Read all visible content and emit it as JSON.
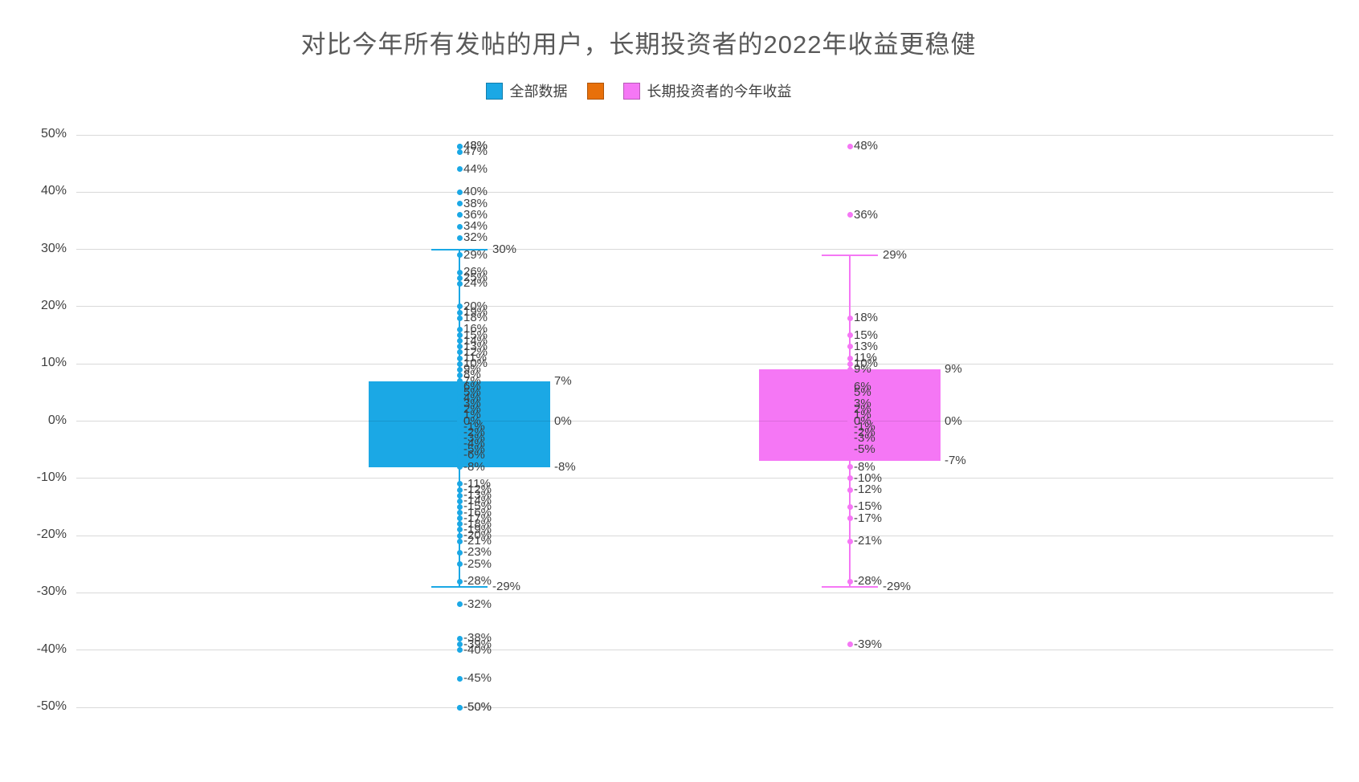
{
  "chart_data": {
    "type": "boxplot",
    "title": "对比今年所有发帖的用户，长期投资者的2022年收益更稳健",
    "ylim": [
      -50,
      50
    ],
    "ytick_step": 10,
    "value_suffix": "%",
    "grid": true,
    "legend_position": "top",
    "legend": [
      {
        "label": "全部数据",
        "color": "#1BA8E5"
      },
      {
        "label": "",
        "color": "#E8700A"
      },
      {
        "label": "长期投资者的今年收益",
        "color": "#F577F5"
      }
    ],
    "series": [
      {
        "name": "全部数据",
        "color": "#1BA8E5",
        "box": {
          "q1": -8,
          "median": 0,
          "q3": 7,
          "whisker_low": -29,
          "whisker_high": 30
        },
        "points": [
          48,
          48,
          47,
          44,
          40,
          38,
          36,
          34,
          32,
          29,
          26,
          25,
          24,
          20,
          19,
          18,
          16,
          15,
          14,
          13,
          12,
          11,
          10,
          9,
          8,
          7,
          6,
          5,
          4,
          3,
          2,
          1,
          0,
          -1,
          -2,
          -3,
          -4,
          -5,
          -6,
          -8,
          -11,
          -12,
          -13,
          -14,
          -15,
          -16,
          -17,
          -18,
          -19,
          -20,
          -21,
          -23,
          -25,
          -28,
          -32,
          -38,
          -39,
          -40,
          -45,
          -50,
          -50
        ]
      },
      {
        "name": "长期投资者的今年收益",
        "color": "#F577F5",
        "box": {
          "q1": -7,
          "median": 0,
          "q3": 9,
          "whisker_low": -29,
          "whisker_high": 29
        },
        "points": [
          48,
          36,
          18,
          15,
          13,
          11,
          10,
          9,
          6,
          5,
          3,
          2,
          1,
          0,
          -1,
          -2,
          -3,
          -5,
          -8,
          -10,
          -12,
          -15,
          -17,
          -21,
          -28,
          -39
        ]
      }
    ]
  }
}
